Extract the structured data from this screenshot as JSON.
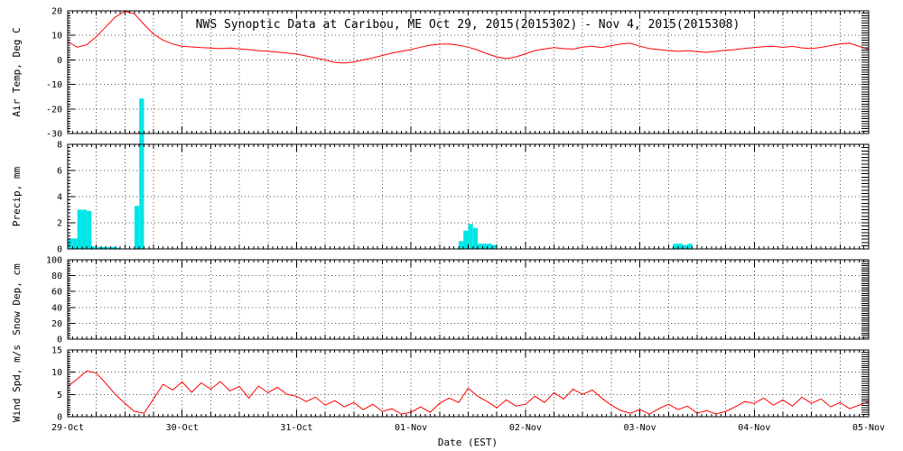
{
  "figure": {
    "title": "NWS Synoptic Data at Caribou, ME   Oct 29, 2015(2015302) - Nov  4, 2015(2015308)",
    "xlabel": "Date (EST)",
    "x_tick_labels": [
      "29-Oct",
      "30-Oct",
      "31-Oct",
      "01-Nov",
      "02-Nov",
      "03-Nov",
      "04-Nov",
      "05-Nov"
    ],
    "x_range_hours": [
      0,
      168
    ],
    "colors": {
      "temperature_line": "#ff0000",
      "wind_line": "#ff0000",
      "precip_bar": "#00e6e6",
      "frame": "#000000",
      "grid_dots": "#555555",
      "background": "#ffffff",
      "text": "#000000"
    }
  },
  "chart_data": [
    {
      "type": "line",
      "name": "air-temperature",
      "ylabel": "Air Temp, Deg C",
      "ylim": [
        -30,
        20
      ],
      "yticks": [
        -30,
        -20,
        -10,
        0,
        10,
        20
      ],
      "step_hours": 2,
      "values": [
        7.5,
        5.2,
        6.2,
        9.5,
        13.5,
        17.5,
        19.8,
        18.8,
        14.5,
        10.5,
        8.0,
        6.5,
        5.5,
        5.3,
        5.0,
        4.8,
        4.6,
        4.8,
        4.5,
        4.2,
        3.8,
        3.5,
        3.2,
        2.8,
        2.4,
        1.6,
        0.8,
        0.0,
        -1.0,
        -1.3,
        -0.8,
        0.0,
        0.8,
        1.8,
        2.8,
        3.5,
        4.2,
        5.2,
        6.0,
        6.4,
        6.5,
        6.0,
        5.2,
        4.0,
        2.5,
        1.2,
        0.5,
        1.2,
        2.5,
        3.8,
        4.5,
        5.0,
        4.6,
        4.4,
        5.2,
        5.6,
        5.0,
        5.8,
        6.5,
        6.8,
        5.6,
        4.6,
        4.2,
        3.8,
        3.5,
        3.8,
        3.4,
        3.1,
        3.5,
        3.9,
        4.2,
        4.7,
        5.0,
        5.4,
        5.6,
        5.1,
        5.5,
        4.9,
        4.6,
        5.1,
        5.8,
        6.5,
        6.8,
        5.5,
        4.3
      ]
    },
    {
      "type": "bar",
      "name": "precipitation",
      "ylabel": "Precip, mm",
      "ylim": [
        0,
        8
      ],
      "yticks": [
        0,
        2,
        4,
        6,
        8
      ],
      "bar_width_hours": 1,
      "events": [
        [
          0,
          0.8
        ],
        [
          1,
          0.8
        ],
        [
          2,
          3.0
        ],
        [
          3,
          3.0
        ],
        [
          4,
          2.9
        ],
        [
          5,
          0.2
        ],
        [
          6,
          0.15
        ],
        [
          7,
          0.15
        ],
        [
          8,
          0.15
        ],
        [
          9,
          0.15
        ],
        [
          10,
          0.1
        ],
        [
          14,
          3.3
        ],
        [
          15,
          11.5
        ],
        [
          82,
          0.6
        ],
        [
          83,
          1.4
        ],
        [
          84,
          1.9
        ],
        [
          85,
          1.6
        ],
        [
          86,
          0.4
        ],
        [
          87,
          0.4
        ],
        [
          88,
          0.4
        ],
        [
          89,
          0.3
        ],
        [
          127,
          0.4
        ],
        [
          128,
          0.4
        ],
        [
          129,
          0.3
        ],
        [
          130,
          0.4
        ]
      ],
      "note": "events are [hour-from-start, mm]; the 11.5 mm bar exceeds the 8 mm axis maximum and is drawn overflowing upward into the temperature panel, as in the source plot"
    },
    {
      "type": "line",
      "name": "snow-depth",
      "ylabel": "Snow Dep, cm",
      "ylim": [
        0,
        100
      ],
      "yticks": [
        0,
        20,
        40,
        60,
        80,
        100
      ],
      "step_hours": 2,
      "values": []
    },
    {
      "type": "line",
      "name": "wind-speed",
      "ylabel": "Wind Spd, m/s",
      "ylim": [
        0,
        15
      ],
      "yticks": [
        0,
        5,
        10,
        15
      ],
      "step_hours": 2,
      "values": [
        6.8,
        8.5,
        10.3,
        9.8,
        7.5,
        5.0,
        3.0,
        1.2,
        0.8,
        4.0,
        7.3,
        6.0,
        7.8,
        5.5,
        7.6,
        6.2,
        7.9,
        5.8,
        6.8,
        4.2,
        6.9,
        5.4,
        6.6,
        5.0,
        4.6,
        3.4,
        4.4,
        2.6,
        3.6,
        2.2,
        3.2,
        1.6,
        2.8,
        1.2,
        1.8,
        0.6,
        1.0,
        2.2,
        1.0,
        3.0,
        4.2,
        3.2,
        6.4,
        4.6,
        3.4,
        2.0,
        3.8,
        2.4,
        2.8,
        4.6,
        3.2,
        5.4,
        4.0,
        6.2,
        5.0,
        6.0,
        4.2,
        2.6,
        1.4,
        0.8,
        1.6,
        0.6,
        1.8,
        2.8,
        1.6,
        2.4,
        0.8,
        1.4,
        0.6,
        1.2,
        2.2,
        3.4,
        3.0,
        4.2,
        2.6,
        3.8,
        2.4,
        4.4,
        3.0,
        4.0,
        2.2,
        3.2,
        1.8,
        2.6,
        3.4
      ]
    }
  ]
}
